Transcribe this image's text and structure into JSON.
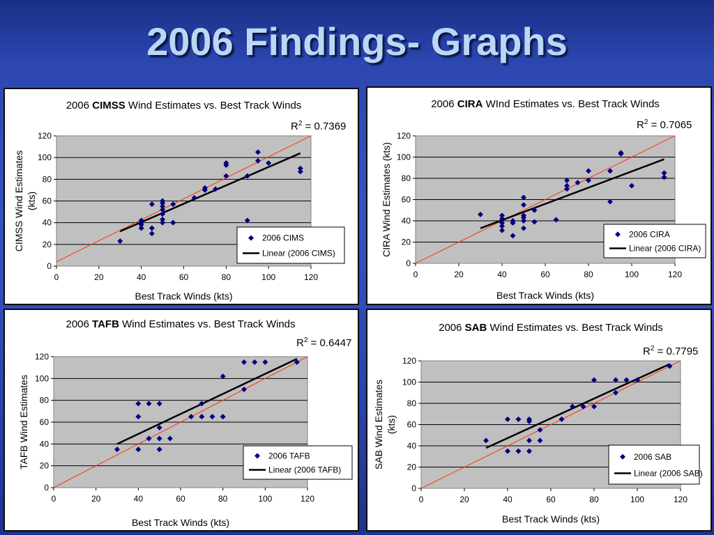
{
  "slide": {
    "title": "2006 Findings- Graphs"
  },
  "chart_data": [
    {
      "id": "cimss",
      "type": "scatter",
      "title_prefix": "2006 ",
      "title_bold": "CIMSS",
      "title_suffix": " Wind Estimates vs. Best Track Winds",
      "xlabel": "Best Track Winds (kts)",
      "ylabel_lines": [
        "CIMSS Wind Estimates",
        "(kts)"
      ],
      "xlim": [
        0,
        120
      ],
      "ylim": [
        0,
        120
      ],
      "xticks": [
        "0",
        "20",
        "40",
        "60",
        "80",
        "100",
        "120"
      ],
      "yticks": [
        "0",
        "20",
        "40",
        "60",
        "80",
        "100",
        "120"
      ],
      "grid": "horizontal",
      "r2_label": "R",
      "r2_sup": "2",
      "r2_value": " = 0.7369",
      "legend_position": "bottom-right",
      "series": [
        {
          "name": "2006 CIMS",
          "points": [
            [
              30,
              23
            ],
            [
              40,
              35
            ],
            [
              40,
              38
            ],
            [
              40,
              40
            ],
            [
              40,
              42
            ],
            [
              45,
              30
            ],
            [
              45,
              35
            ],
            [
              45,
              57
            ],
            [
              50,
              40
            ],
            [
              50,
              43
            ],
            [
              50,
              48
            ],
            [
              50,
              52
            ],
            [
              50,
              55
            ],
            [
              50,
              58
            ],
            [
              50,
              60
            ],
            [
              55,
              40
            ],
            [
              55,
              57
            ],
            [
              65,
              63
            ],
            [
              70,
              70
            ],
            [
              70,
              72
            ],
            [
              75,
              71
            ],
            [
              80,
              83
            ],
            [
              80,
              93
            ],
            [
              80,
              95
            ],
            [
              90,
              42
            ],
            [
              90,
              83
            ],
            [
              95,
              97
            ],
            [
              95,
              105
            ],
            [
              100,
              95
            ],
            [
              115,
              87
            ],
            [
              115,
              90
            ]
          ]
        }
      ],
      "trendline": {
        "name": "Linear (2006 CIMS)",
        "from": [
          30,
          32
        ],
        "to": [
          115,
          104
        ]
      },
      "identity_line": {
        "from": [
          0,
          4
        ],
        "to": [
          120,
          120
        ]
      }
    },
    {
      "id": "cira",
      "type": "scatter",
      "title_prefix": "2006 ",
      "title_bold": "CIRA",
      "title_suffix": " WInd Estimates vs. Best Track Winds",
      "xlabel": "Best Track Winds (kts)",
      "ylabel_lines": [
        "CIRA Wind Estimates (kts)"
      ],
      "xlim": [
        0,
        120
      ],
      "ylim": [
        0,
        120
      ],
      "xticks": [
        "0",
        "20",
        "40",
        "60",
        "80",
        "100",
        "120"
      ],
      "yticks": [
        "0",
        "20",
        "40",
        "60",
        "80",
        "100",
        "120"
      ],
      "grid": "horizontal",
      "r2_label": "R",
      "r2_sup": "2",
      "r2_value": " = 0.7065",
      "legend_position": "bottom-right",
      "series": [
        {
          "name": "2006 CIRA",
          "points": [
            [
              30,
              46
            ],
            [
              40,
              31
            ],
            [
              40,
              35
            ],
            [
              40,
              38
            ],
            [
              40,
              42
            ],
            [
              40,
              45
            ],
            [
              45,
              26
            ],
            [
              45,
              38
            ],
            [
              45,
              40
            ],
            [
              50,
              33
            ],
            [
              50,
              40
            ],
            [
              50,
              43
            ],
            [
              50,
              45
            ],
            [
              50,
              55
            ],
            [
              50,
              62
            ],
            [
              55,
              39
            ],
            [
              55,
              50
            ],
            [
              65,
              41
            ],
            [
              70,
              70
            ],
            [
              70,
              73
            ],
            [
              70,
              78
            ],
            [
              75,
              76
            ],
            [
              80,
              78
            ],
            [
              80,
              87
            ],
            [
              90,
              58
            ],
            [
              90,
              87
            ],
            [
              95,
              103
            ],
            [
              95,
              104
            ],
            [
              100,
              73
            ],
            [
              115,
              81
            ],
            [
              115,
              85
            ]
          ]
        }
      ],
      "trendline": {
        "name": "Linear (2006 CIRA)",
        "from": [
          30,
          33
        ],
        "to": [
          115,
          98
        ]
      },
      "identity_line": {
        "from": [
          0,
          0
        ],
        "to": [
          120,
          120
        ]
      }
    },
    {
      "id": "tafb",
      "type": "scatter",
      "title_prefix": "2006 ",
      "title_bold": "TAFB",
      "title_suffix": " Wind Estimates vs. Best Track Winds",
      "xlabel": "Best Track Winds (kts)",
      "ylabel_lines": [
        "TAFB Wind Estimates"
      ],
      "xlim": [
        0,
        120
      ],
      "ylim": [
        0,
        120
      ],
      "xticks": [
        "0",
        "20",
        "40",
        "60",
        "80",
        "100",
        "120"
      ],
      "yticks": [
        "0",
        "20",
        "40",
        "60",
        "80",
        "100",
        "120"
      ],
      "grid": "horizontal",
      "r2_label": "R",
      "r2_sup": "2",
      "r2_value": " = 0.6447",
      "legend_position": "bottom-right",
      "series": [
        {
          "name": "2006 TAFB",
          "points": [
            [
              30,
              35
            ],
            [
              40,
              35
            ],
            [
              40,
              65
            ],
            [
              40,
              77
            ],
            [
              45,
              45
            ],
            [
              45,
              77
            ],
            [
              50,
              35
            ],
            [
              50,
              45
            ],
            [
              50,
              55
            ],
            [
              50,
              77
            ],
            [
              55,
              45
            ],
            [
              65,
              65
            ],
            [
              70,
              65
            ],
            [
              70,
              77
            ],
            [
              75,
              65
            ],
            [
              80,
              65
            ],
            [
              80,
              102
            ],
            [
              90,
              90
            ],
            [
              90,
              115
            ],
            [
              95,
              115
            ],
            [
              100,
              115
            ],
            [
              115,
              115
            ]
          ]
        }
      ],
      "trendline": {
        "name": "Linear (2006 TAFB)",
        "from": [
          30,
          40
        ],
        "to": [
          115,
          118
        ]
      },
      "identity_line": {
        "from": [
          0,
          0
        ],
        "to": [
          120,
          120
        ]
      }
    },
    {
      "id": "sab",
      "type": "scatter",
      "title_prefix": "2006 ",
      "title_bold": "SAB",
      "title_suffix": " Wind Estimates vs. Best Track Winds",
      "xlabel": "Best Track Winds (kts)",
      "ylabel_lines": [
        "SAB Wind Estimates",
        "(kts)"
      ],
      "xlim": [
        0,
        120
      ],
      "ylim": [
        0,
        120
      ],
      "xticks": [
        "0",
        "20",
        "40",
        "60",
        "80",
        "100",
        "120"
      ],
      "yticks": [
        "0",
        "20",
        "40",
        "60",
        "80",
        "100",
        "120"
      ],
      "grid": "horizontal",
      "r2_label": "R",
      "r2_sup": "2",
      "r2_value": " = 0.7795",
      "legend_position": "bottom-right",
      "series": [
        {
          "name": "2006 SAB",
          "points": [
            [
              30,
              45
            ],
            [
              40,
              35
            ],
            [
              40,
              65
            ],
            [
              45,
              35
            ],
            [
              45,
              65
            ],
            [
              50,
              35
            ],
            [
              50,
              45
            ],
            [
              50,
              63
            ],
            [
              50,
              65
            ],
            [
              55,
              45
            ],
            [
              55,
              55
            ],
            [
              65,
              65
            ],
            [
              70,
              77
            ],
            [
              75,
              77
            ],
            [
              80,
              77
            ],
            [
              80,
              102
            ],
            [
              90,
              90
            ],
            [
              90,
              102
            ],
            [
              95,
              102
            ],
            [
              100,
              102
            ],
            [
              115,
              115
            ]
          ]
        }
      ],
      "trendline": {
        "name": "Linear (2006 SAB)",
        "from": [
          30,
          38
        ],
        "to": [
          115,
          117
        ]
      },
      "identity_line": {
        "from": [
          0,
          0
        ],
        "to": [
          120,
          120
        ]
      }
    }
  ],
  "colors": {
    "plot_bg": "#c0c0c0",
    "marker": "#000080",
    "trend": "#000000",
    "identity": "#ff3300"
  }
}
